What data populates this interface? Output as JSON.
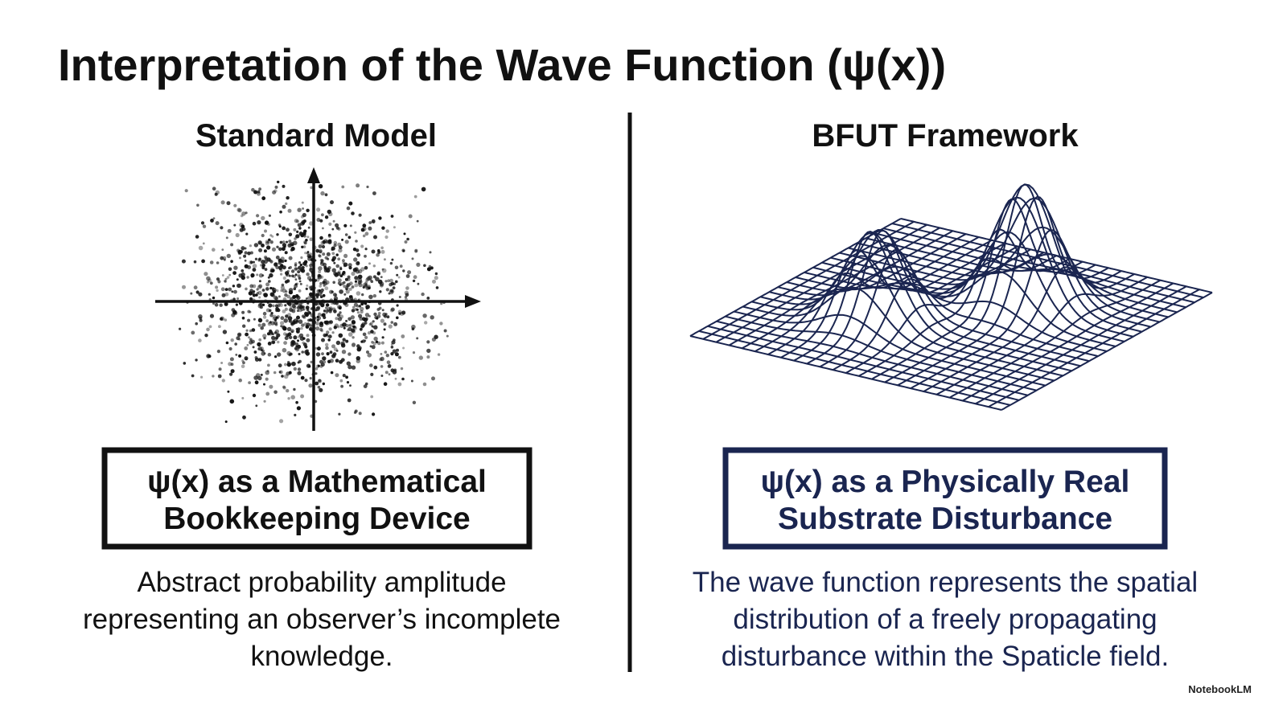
{
  "title": "Interpretation of the Wave Function (ψ(x))",
  "panels": [
    {
      "heading": "Standard Model",
      "box_lines": [
        "ψ(x) as a Mathematical",
        "Bookkeeping Device"
      ],
      "description_lines": [
        "Abstract probability amplitude",
        "representing an observer’s incomplete",
        "knowledge."
      ]
    },
    {
      "heading": "BFUT Framework",
      "box_lines": [
        "ψ(x) as a Physically Real",
        "Substrate Disturbance"
      ],
      "description_lines": [
        "The wave function represents the spatial",
        "distribution of a freely propagating",
        "disturbance within the Spaticle field."
      ]
    }
  ],
  "footer": "NotebookLM"
}
